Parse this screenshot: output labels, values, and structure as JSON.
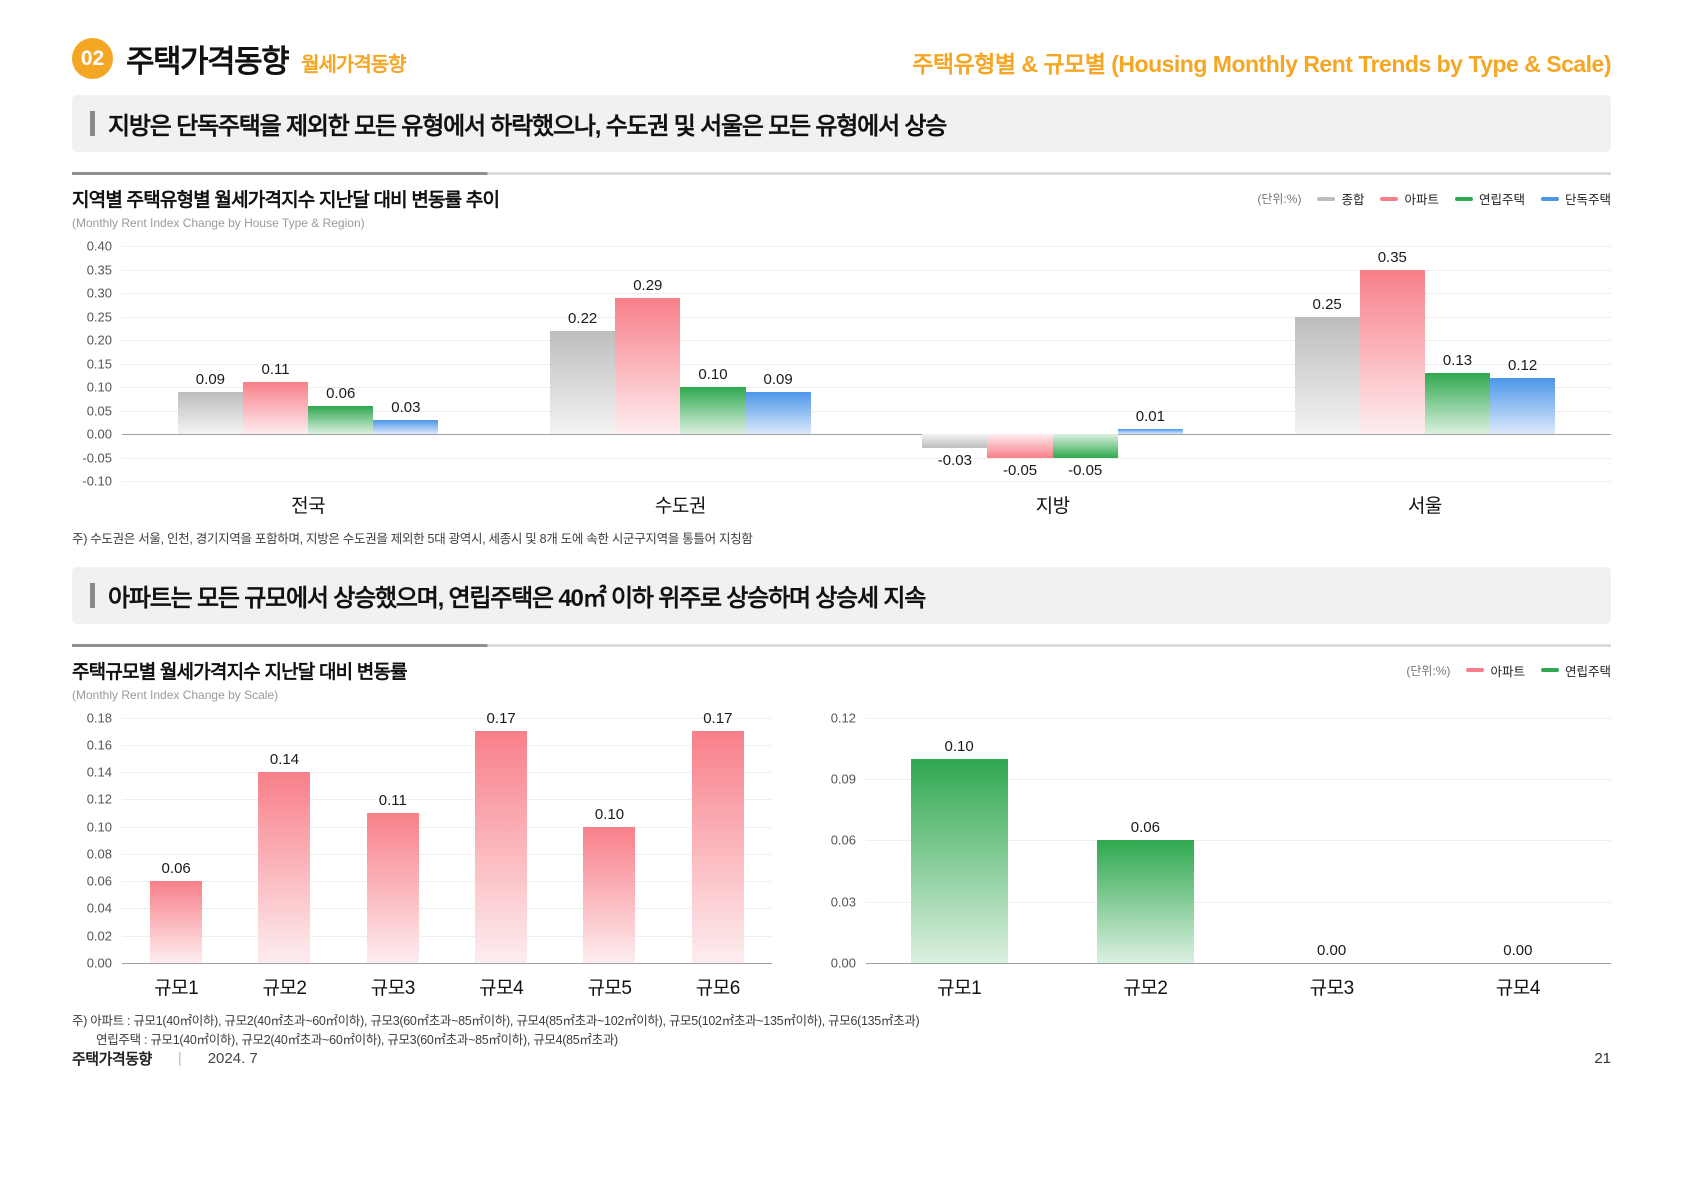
{
  "page": {
    "badge": "02",
    "title": "주택가격동향",
    "subtitle": "월세가격동향",
    "header_right": "주택유형별 & 규모별 (Housing Monthly Rent Trends by Type & Scale)",
    "footer_left": "주택가격동향",
    "footer_separator": "|",
    "footer_date": "2024. 7",
    "page_number": "21"
  },
  "banners": [
    "지방은 단독주택을 제외한 모든 유형에서 하락했으나, 수도권 및 서울은 모든 유형에서 상승",
    "아파트는 모든 규모에서 상승했으며, 연립주택은 40㎡ 이하 위주로 상승하며 상승세 지속"
  ],
  "colors": {
    "accent": "#F5A623",
    "banner_bg": "#F1F1F2"
  },
  "section1": {
    "unit_label": "(단위:%)",
    "note": "주) 수도권은 서울, 인천, 경기지역을 포함하며, 지방은 수도권을 제외한 5대 광역시, 세종시 및 8개 도에 속한 시군구지역을 통틀어 지칭함"
  },
  "section2": {
    "title": "주택규모별 월세가격지수 지난달 대비 변동률",
    "subtitle": "(Monthly Rent Index Change by Scale)",
    "unit_label": "(단위:%)",
    "note_line1": "주) 아파트 : 규모1(40㎡이하), 규모2(40㎡초과~60㎡이하), 규모3(60㎡초과~85㎡이하), 규모4(85㎡초과~102㎡이하), 규모5(102㎡초과~135㎡이하), 규모6(135㎡초과)",
    "note_line2": "연립주택 : 규모1(40㎡이하), 규모2(40㎡초과~60㎡이하), 규모3(60㎡초과~85㎡이하), 규모4(85㎡초과)"
  },
  "chart_data": [
    {
      "type": "bar",
      "title": "지역별 주택유형별 월세가격지수 지난달 대비 변동률 추이",
      "subtitle": "(Monthly Rent Index Change by House Type & Region)",
      "categories": [
        "전국",
        "수도권",
        "지방",
        "서울"
      ],
      "series": [
        {
          "key": "total",
          "name": "종합",
          "color": "#BDBDBD",
          "color_light": "#F3F3F3",
          "values": [
            0.09,
            0.22,
            -0.03,
            0.25
          ]
        },
        {
          "key": "apartment",
          "name": "아파트",
          "color": "#F87F89",
          "color_light": "#FDEDEF",
          "values": [
            0.11,
            0.29,
            -0.05,
            0.35
          ]
        },
        {
          "key": "rowhouse",
          "name": "연립주택",
          "color": "#2FA84F",
          "color_light": "#DCF0E1",
          "values": [
            0.06,
            0.1,
            -0.05,
            0.13
          ]
        },
        {
          "key": "detached",
          "name": "단독주택",
          "color": "#4C96E8",
          "color_light": "#DDE9FB",
          "values": [
            0.03,
            0.09,
            0.01,
            0.12
          ]
        }
      ],
      "ylim": [
        -0.1,
        0.4
      ],
      "ytick_step": 0.05,
      "bar_width_pct": 17.5,
      "grid": true,
      "legend_position": "top-right"
    },
    {
      "type": "bar",
      "title": "주택규모별 월세가격지수 지난달 대비 변동률 — 아파트",
      "categories": [
        "규모1",
        "규모2",
        "규모3",
        "규모4",
        "규모5",
        "규모6"
      ],
      "series": [
        {
          "key": "apartment",
          "name": "아파트",
          "color": "#F87F89",
          "color_light": "#FDEDEF",
          "values": [
            0.06,
            0.14,
            0.11,
            0.17,
            0.1,
            0.17
          ]
        }
      ],
      "ylim": [
        0,
        0.18
      ],
      "ytick_step": 0.02,
      "bar_width_pct": 48,
      "grid": true
    },
    {
      "type": "bar",
      "title": "주택규모별 월세가격지수 지난달 대비 변동률 — 연립주택",
      "categories": [
        "규모1",
        "규모2",
        "규모3",
        "규모4"
      ],
      "series": [
        {
          "key": "rowhouse",
          "name": "연립주택",
          "color": "#2FA84F",
          "color_light": "#DCF0E1",
          "values": [
            0.1,
            0.06,
            0.0,
            0.0
          ]
        }
      ],
      "ylim": [
        0,
        0.12
      ],
      "ytick_step": 0.03,
      "bar_width_pct": 52,
      "grid": true
    }
  ]
}
